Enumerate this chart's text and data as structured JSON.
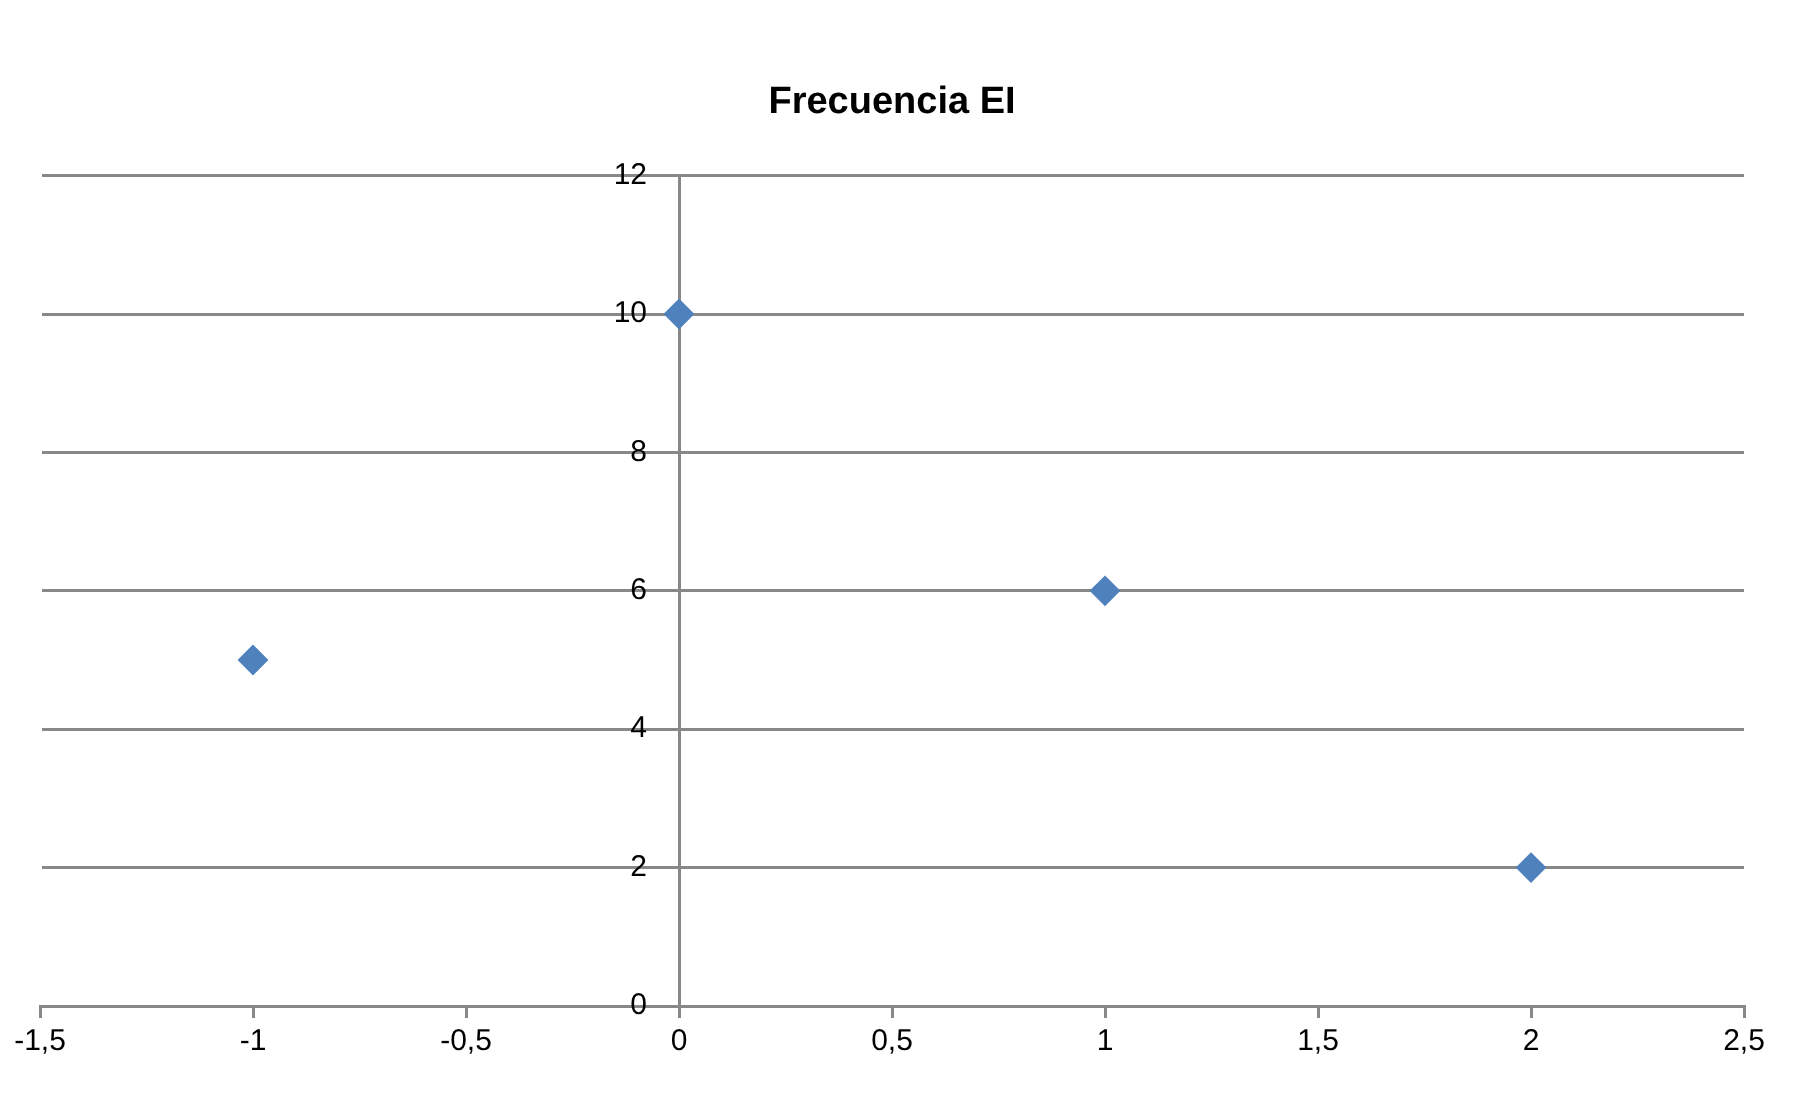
{
  "chart_data": {
    "type": "scatter",
    "title": "Frecuencia EI",
    "x": [
      -1,
      0,
      1,
      2
    ],
    "series": [
      {
        "color": "#4f81bd",
        "values": [
          5,
          10,
          6,
          2
        ]
      }
    ],
    "marker": "diamond",
    "grid": "y",
    "legend": false,
    "xlim": [
      -1.5,
      2.5
    ],
    "xticks": [
      {
        "value": -1.5,
        "label": "-1,5"
      },
      -1,
      {
        "value": -0.5,
        "label": "-0,5"
      },
      0,
      {
        "value": 0.5,
        "label": "0,5"
      },
      1,
      {
        "value": 1.5,
        "label": "1,5"
      },
      2,
      {
        "value": 2.5,
        "label": "2,5"
      }
    ],
    "ylim": [
      0,
      12
    ],
    "yticks": [
      0,
      2,
      4,
      6,
      8,
      10,
      12
    ]
  }
}
